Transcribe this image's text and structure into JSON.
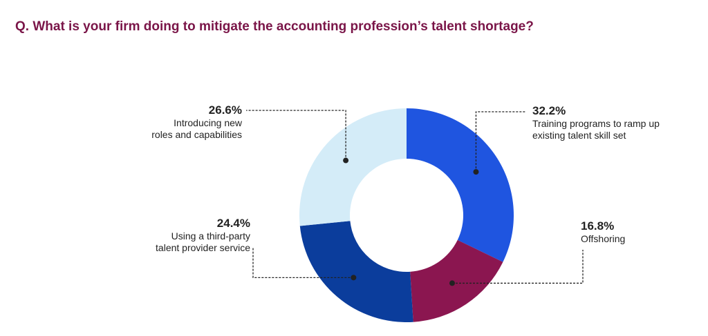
{
  "chart_data": {
    "type": "donut",
    "title": "Q. What is your firm doing to mitigate the accounting profession’s talent shortage?",
    "categories": [
      "Training programs to ramp up\nexisting talent skill set",
      "Offshoring",
      "Using a third-party\ntalent provider service",
      "Introducing new\nroles and capabilities"
    ],
    "values": [
      32.2,
      16.8,
      24.4,
      26.6
    ],
    "value_labels": [
      "32.2%",
      "16.8%",
      "24.4%",
      "26.6%"
    ],
    "colors": [
      "#1f55e0",
      "#8b1650",
      "#0b3d9c",
      "#d4ecf8"
    ]
  }
}
